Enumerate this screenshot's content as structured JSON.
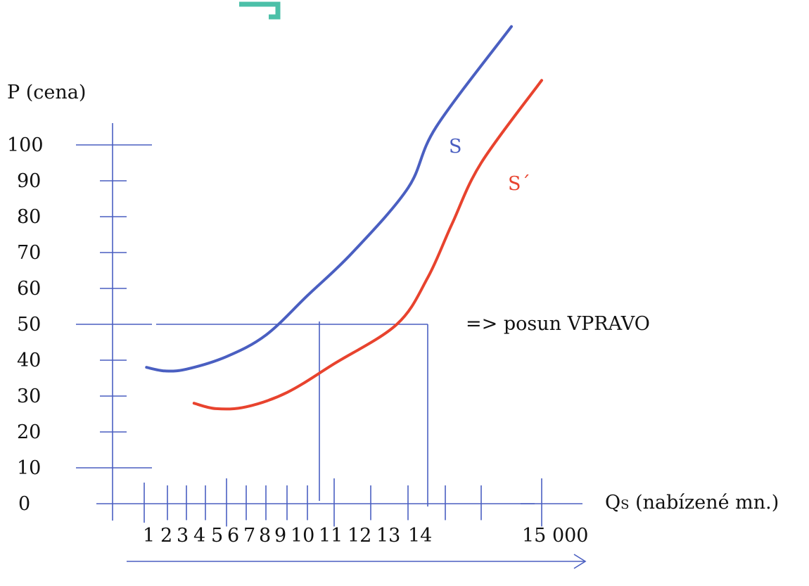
{
  "chart_data": {
    "type": "line",
    "ylabel": "P (cena)",
    "xlabel_main": "Q",
    "xlabel_sub": "S",
    "xlabel_rest": " (nabízené mn.)",
    "y_ticks": [
      "0",
      "10",
      "20",
      "30",
      "40",
      "50",
      "60",
      "70",
      "80",
      "90",
      "100"
    ],
    "x_ticks": [
      "1",
      "2",
      "3",
      "4",
      "5",
      "6",
      "7",
      "8",
      "9",
      "10",
      "11",
      "12",
      "13",
      "14",
      "15 000"
    ],
    "ylim": [
      0,
      100
    ],
    "series": [
      {
        "name": "S",
        "color": "#4a5fc1",
        "points": [
          [
            1.1,
            38
          ],
          [
            1.9,
            37
          ],
          [
            3,
            37.5
          ],
          [
            5,
            41
          ],
          [
            7,
            47
          ],
          [
            9,
            58
          ],
          [
            10.5,
            70
          ],
          [
            12,
            88
          ],
          [
            13.4,
            105
          ],
          [
            15.5,
            133
          ]
        ]
      },
      {
        "name": "S´",
        "color": "#e8432e",
        "points": [
          [
            3.4,
            28
          ],
          [
            4.5,
            26.5
          ],
          [
            6,
            27
          ],
          [
            8,
            31
          ],
          [
            10,
            39
          ],
          [
            11.7,
            50
          ],
          [
            13,
            63
          ],
          [
            14.1,
            78
          ],
          [
            15,
            95
          ],
          [
            16,
            118
          ]
        ]
      }
    ],
    "reference": {
      "price": 50,
      "quantities": [
        9.4,
        12.7
      ]
    },
    "annotation": "=> posun VPRAVO"
  }
}
